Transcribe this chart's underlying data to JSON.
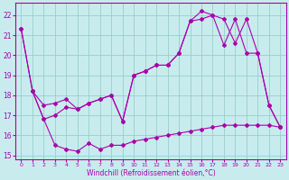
{
  "bg_color": "#c8ecee",
  "line_color": "#aa00aa",
  "grid_color": "#99cccc",
  "xlabel": "Windchill (Refroidissement éolien,°C)",
  "xlim": [
    -0.5,
    23.5
  ],
  "ylim": [
    14.8,
    22.6
  ],
  "yticks": [
    15,
    16,
    17,
    18,
    19,
    20,
    21,
    22
  ],
  "xticks": [
    0,
    1,
    2,
    3,
    4,
    5,
    6,
    7,
    8,
    9,
    10,
    11,
    12,
    13,
    14,
    15,
    16,
    17,
    18,
    19,
    20,
    21,
    22,
    23
  ],
  "series1_x": [
    0,
    1,
    2,
    3,
    4,
    5,
    6,
    7,
    8,
    9,
    10,
    11,
    12,
    13,
    14,
    15,
    16,
    17,
    18,
    19,
    20,
    21,
    22,
    23
  ],
  "series1_y": [
    21.3,
    18.2,
    16.8,
    15.5,
    15.3,
    15.2,
    15.6,
    15.3,
    15.5,
    15.5,
    15.7,
    15.8,
    15.9,
    16.0,
    16.1,
    16.2,
    16.3,
    16.4,
    16.5,
    16.5,
    16.5,
    16.5,
    16.5,
    16.4
  ],
  "series2_x": [
    0,
    1,
    2,
    3,
    4,
    5,
    6,
    7,
    8,
    9,
    10,
    11,
    12,
    13,
    14,
    15,
    16,
    17,
    18,
    19,
    20,
    21,
    22,
    23
  ],
  "series2_y": [
    21.3,
    18.2,
    16.8,
    17.0,
    17.4,
    17.3,
    17.6,
    17.8,
    18.0,
    16.7,
    19.0,
    19.2,
    19.5,
    19.5,
    20.1,
    21.7,
    21.8,
    22.0,
    20.5,
    21.8,
    20.1,
    20.1,
    17.5,
    16.4
  ],
  "series3_x": [
    1,
    2,
    3,
    4,
    5,
    6,
    7,
    8,
    9,
    10,
    11,
    12,
    13,
    14,
    15,
    16,
    17,
    18,
    19,
    20,
    21,
    22,
    23
  ],
  "series3_y": [
    18.2,
    17.5,
    17.6,
    17.8,
    17.3,
    17.6,
    17.8,
    18.0,
    16.7,
    19.0,
    19.2,
    19.5,
    19.5,
    20.1,
    21.7,
    22.2,
    22.0,
    21.8,
    20.6,
    21.8,
    20.1,
    17.5,
    16.4
  ]
}
